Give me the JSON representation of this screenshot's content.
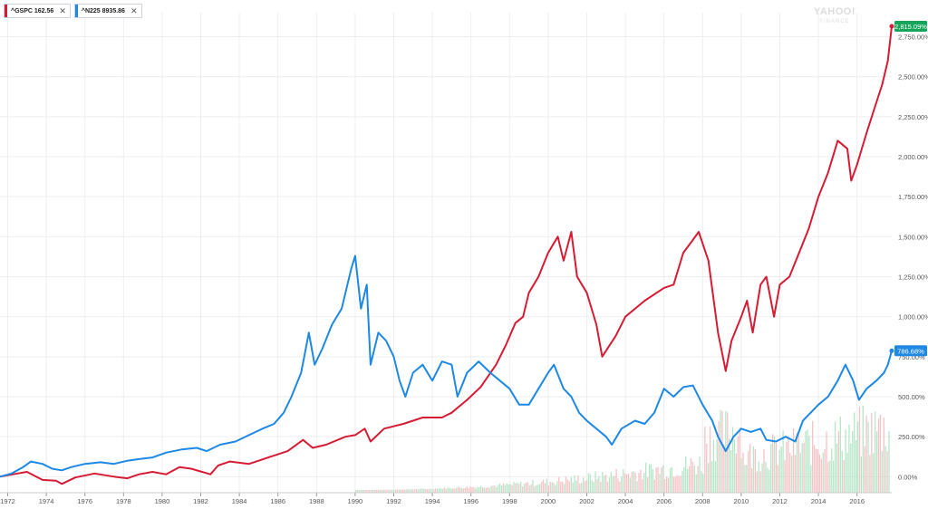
{
  "legend": [
    {
      "symbol": "^GSPC",
      "value": "162.56",
      "color": "#d61c34"
    },
    {
      "symbol": "^N225",
      "value": "8935.86",
      "color": "#1e88e5"
    }
  ],
  "watermark": {
    "brand": "YAHOO!",
    "sub": "FINANCE"
  },
  "icons": {
    "close": "close-icon"
  },
  "colors": {
    "gspc": "#d61c34",
    "n225": "#1e88e5",
    "badge_green": "#14a55b",
    "badge_blue": "#1e88e5",
    "vol_green": "#b5e6c8",
    "vol_red": "#f6c2c6",
    "grid": "#eeeeee"
  },
  "chart_data": {
    "type": "line",
    "x_unit": "year",
    "xlim": [
      1971.6,
      2017.8
    ],
    "ylim": [
      -100,
      2900
    ],
    "y_ticks": [
      {
        "value": 0,
        "label": "0.00%"
      },
      {
        "value": 250,
        "label": "250.00%"
      },
      {
        "value": 500,
        "label": "500.00%"
      },
      {
        "value": 750,
        "label": "750.00%"
      },
      {
        "value": 1000,
        "label": "1,000.00%"
      },
      {
        "value": 1250,
        "label": "1,250.00%"
      },
      {
        "value": 1500,
        "label": "1,500.00%"
      },
      {
        "value": 1750,
        "label": "1,750.00%"
      },
      {
        "value": 2000,
        "label": "2,000.00%"
      },
      {
        "value": 2250,
        "label": "2,250.00%"
      },
      {
        "value": 2500,
        "label": "2,500.00%"
      },
      {
        "value": 2750,
        "label": "2,750.00%"
      }
    ],
    "x_ticks": [
      "1972",
      "1974",
      "1976",
      "1978",
      "1980",
      "1982",
      "1984",
      "1986",
      "1988",
      "1990",
      "1992",
      "1994",
      "1996",
      "1998",
      "2000",
      "2002",
      "2004",
      "2006",
      "2008",
      "2010",
      "2012",
      "2014",
      "2016"
    ],
    "grid": true,
    "series": [
      {
        "name": "^GSPC",
        "color": "#d61c34",
        "end_label": "2,815.09%",
        "points": [
          [
            1971.6,
            0
          ],
          [
            1972.5,
            20
          ],
          [
            1973.0,
            30
          ],
          [
            1973.8,
            -20
          ],
          [
            1974.5,
            -25
          ],
          [
            1974.8,
            -45
          ],
          [
            1975.5,
            -5
          ],
          [
            1976.5,
            20
          ],
          [
            1977.5,
            0
          ],
          [
            1978.2,
            -10
          ],
          [
            1978.8,
            15
          ],
          [
            1979.5,
            30
          ],
          [
            1980.2,
            15
          ],
          [
            1980.9,
            60
          ],
          [
            1981.5,
            50
          ],
          [
            1982.5,
            15
          ],
          [
            1982.9,
            70
          ],
          [
            1983.5,
            95
          ],
          [
            1984.5,
            80
          ],
          [
            1985.5,
            120
          ],
          [
            1986.5,
            160
          ],
          [
            1987.3,
            230
          ],
          [
            1987.8,
            180
          ],
          [
            1988.5,
            200
          ],
          [
            1989.5,
            250
          ],
          [
            1990.0,
            260
          ],
          [
            1990.5,
            300
          ],
          [
            1990.8,
            220
          ],
          [
            1991.5,
            300
          ],
          [
            1992.5,
            330
          ],
          [
            1993.5,
            370
          ],
          [
            1994.5,
            370
          ],
          [
            1995.0,
            400
          ],
          [
            1995.8,
            480
          ],
          [
            1996.5,
            560
          ],
          [
            1997.3,
            700
          ],
          [
            1997.8,
            820
          ],
          [
            1998.3,
            960
          ],
          [
            1998.7,
            1000
          ],
          [
            1999.0,
            1150
          ],
          [
            1999.5,
            1250
          ],
          [
            2000.0,
            1400
          ],
          [
            2000.5,
            1500
          ],
          [
            2000.8,
            1350
          ],
          [
            2001.2,
            1530
          ],
          [
            2001.5,
            1250
          ],
          [
            2002.0,
            1150
          ],
          [
            2002.5,
            950
          ],
          [
            2002.8,
            750
          ],
          [
            2003.5,
            880
          ],
          [
            2004.0,
            1000
          ],
          [
            2005.0,
            1100
          ],
          [
            2006.0,
            1180
          ],
          [
            2006.5,
            1200
          ],
          [
            2007.0,
            1400
          ],
          [
            2007.5,
            1480
          ],
          [
            2007.8,
            1530
          ],
          [
            2008.3,
            1350
          ],
          [
            2008.8,
            900
          ],
          [
            2009.2,
            660
          ],
          [
            2009.5,
            850
          ],
          [
            2010.0,
            1000
          ],
          [
            2010.3,
            1100
          ],
          [
            2010.6,
            900
          ],
          [
            2011.0,
            1200
          ],
          [
            2011.3,
            1250
          ],
          [
            2011.7,
            1000
          ],
          [
            2012.0,
            1200
          ],
          [
            2012.5,
            1250
          ],
          [
            2013.0,
            1400
          ],
          [
            2013.5,
            1550
          ],
          [
            2014.0,
            1750
          ],
          [
            2014.5,
            1900
          ],
          [
            2015.0,
            2100
          ],
          [
            2015.5,
            2050
          ],
          [
            2015.7,
            1850
          ],
          [
            2016.0,
            1950
          ],
          [
            2016.5,
            2150
          ],
          [
            2016.9,
            2300
          ],
          [
            2017.3,
            2450
          ],
          [
            2017.6,
            2600
          ],
          [
            2017.8,
            2815
          ]
        ]
      },
      {
        "name": "^N225",
        "color": "#1e88e5",
        "end_label": "786.68%",
        "points": [
          [
            1971.6,
            0
          ],
          [
            1972.2,
            20
          ],
          [
            1972.8,
            60
          ],
          [
            1973.2,
            95
          ],
          [
            1973.8,
            80
          ],
          [
            1974.3,
            50
          ],
          [
            1974.8,
            40
          ],
          [
            1975.3,
            60
          ],
          [
            1976.0,
            80
          ],
          [
            1976.8,
            90
          ],
          [
            1977.5,
            80
          ],
          [
            1978.2,
            100
          ],
          [
            1978.8,
            110
          ],
          [
            1979.5,
            120
          ],
          [
            1980.2,
            150
          ],
          [
            1981.0,
            170
          ],
          [
            1981.8,
            180
          ],
          [
            1982.3,
            160
          ],
          [
            1983.0,
            200
          ],
          [
            1983.8,
            220
          ],
          [
            1984.5,
            260
          ],
          [
            1985.2,
            300
          ],
          [
            1985.8,
            330
          ],
          [
            1986.3,
            400
          ],
          [
            1986.7,
            500
          ],
          [
            1987.2,
            650
          ],
          [
            1987.6,
            900
          ],
          [
            1987.9,
            700
          ],
          [
            1988.3,
            800
          ],
          [
            1988.8,
            950
          ],
          [
            1989.3,
            1050
          ],
          [
            1989.8,
            1300
          ],
          [
            1990.0,
            1380
          ],
          [
            1990.3,
            1050
          ],
          [
            1990.6,
            1200
          ],
          [
            1990.8,
            700
          ],
          [
            1991.2,
            900
          ],
          [
            1991.6,
            850
          ],
          [
            1992.0,
            750
          ],
          [
            1992.3,
            600
          ],
          [
            1992.6,
            500
          ],
          [
            1993.0,
            650
          ],
          [
            1993.5,
            700
          ],
          [
            1994.0,
            600
          ],
          [
            1994.5,
            720
          ],
          [
            1995.0,
            700
          ],
          [
            1995.3,
            500
          ],
          [
            1995.8,
            650
          ],
          [
            1996.4,
            720
          ],
          [
            1997.0,
            650
          ],
          [
            1997.5,
            600
          ],
          [
            1998.0,
            550
          ],
          [
            1998.5,
            450
          ],
          [
            1999.0,
            450
          ],
          [
            1999.5,
            550
          ],
          [
            2000.0,
            650
          ],
          [
            2000.3,
            700
          ],
          [
            2000.8,
            550
          ],
          [
            2001.2,
            500
          ],
          [
            2001.6,
            400
          ],
          [
            2002.0,
            350
          ],
          [
            2002.5,
            300
          ],
          [
            2003.0,
            250
          ],
          [
            2003.3,
            200
          ],
          [
            2003.8,
            300
          ],
          [
            2004.5,
            350
          ],
          [
            2005.0,
            330
          ],
          [
            2005.5,
            400
          ],
          [
            2006.0,
            550
          ],
          [
            2006.5,
            500
          ],
          [
            2007.0,
            560
          ],
          [
            2007.5,
            570
          ],
          [
            2008.0,
            450
          ],
          [
            2008.5,
            350
          ],
          [
            2008.8,
            250
          ],
          [
            2009.2,
            160
          ],
          [
            2009.6,
            250
          ],
          [
            2010.0,
            300
          ],
          [
            2010.5,
            280
          ],
          [
            2011.0,
            300
          ],
          [
            2011.3,
            230
          ],
          [
            2011.8,
            220
          ],
          [
            2012.3,
            250
          ],
          [
            2012.8,
            220
          ],
          [
            2013.2,
            350
          ],
          [
            2013.6,
            400
          ],
          [
            2014.0,
            450
          ],
          [
            2014.5,
            500
          ],
          [
            2015.0,
            600
          ],
          [
            2015.4,
            700
          ],
          [
            2015.8,
            600
          ],
          [
            2016.1,
            480
          ],
          [
            2016.5,
            550
          ],
          [
            2017.0,
            600
          ],
          [
            2017.4,
            650
          ],
          [
            2017.6,
            700
          ],
          [
            2017.8,
            787
          ]
        ]
      }
    ]
  }
}
